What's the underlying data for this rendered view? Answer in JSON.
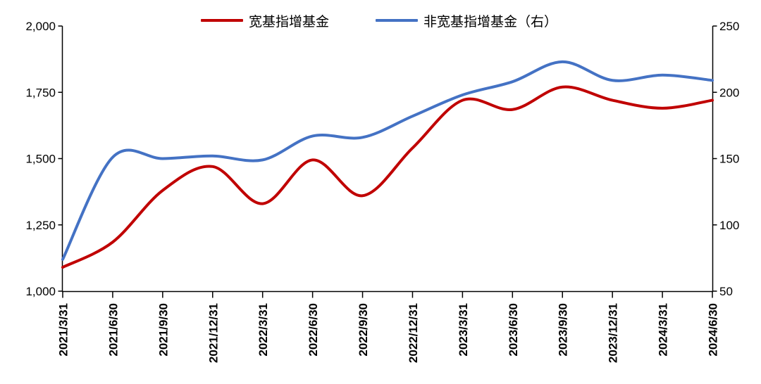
{
  "chart_data": {
    "type": "line",
    "smooth": true,
    "grid": false,
    "legend_position": "top",
    "background_color": "#ffffff",
    "axis_color": "#000000",
    "categories": [
      "2021/3/31",
      "2021/6/30",
      "2021/9/30",
      "2021/12/31",
      "2022/3/31",
      "2022/6/30",
      "2022/9/30",
      "2022/12/31",
      "2023/3/31",
      "2023/6/30",
      "2023/9/30",
      "2023/12/31",
      "2024/3/31",
      "2024/6/30"
    ],
    "series": [
      {
        "name": "宽基指增基金",
        "axis": "left",
        "color": "#c00000",
        "values": [
          1090,
          1185,
          1380,
          1470,
          1330,
          1495,
          1360,
          1540,
          1720,
          1685,
          1770,
          1720,
          1690,
          1720
        ]
      },
      {
        "name": "非宽基指增基金（右）",
        "axis": "right",
        "color": "#4472c4",
        "values": [
          74,
          151,
          150,
          152,
          149,
          167,
          166,
          182,
          198,
          208,
          223,
          209,
          213,
          209
        ]
      }
    ],
    "left_axis": {
      "min": 1000,
      "max": 2000,
      "step": 250,
      "tick_values": [
        1000,
        1250,
        1500,
        1750,
        2000
      ],
      "tick_labels": [
        "1,000",
        "1,250",
        "1,500",
        "1,750",
        "2,000"
      ]
    },
    "right_axis": {
      "min": 50,
      "max": 250,
      "step": 50,
      "tick_values": [
        50,
        100,
        150,
        200,
        250
      ],
      "tick_labels": [
        "50",
        "100",
        "150",
        "200",
        "250"
      ]
    }
  }
}
